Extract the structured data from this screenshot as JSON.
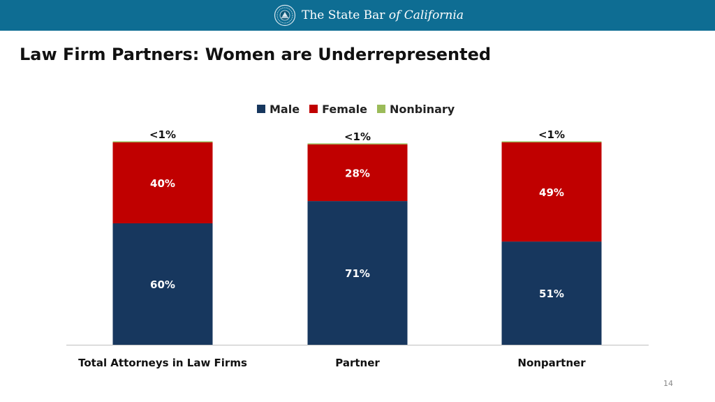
{
  "header": {
    "brand_main": "The State Bar ",
    "brand_italic": "of California",
    "logo_icon": "state-bar-seal-icon",
    "bg_color": "#0e6d93"
  },
  "page": {
    "title": "Law Firm Partners:  Women are Underrepresented",
    "page_number": "14"
  },
  "chart_data": {
    "type": "bar",
    "stacked": true,
    "categories": [
      "Total Attorneys in Law Firms",
      "Partner",
      "Nonpartner"
    ],
    "series": [
      {
        "name": "Male",
        "color": "#17375e",
        "values": [
          60,
          71,
          51
        ],
        "labels": [
          "60%",
          "71%",
          "51%"
        ]
      },
      {
        "name": "Female",
        "color": "#c00000",
        "values": [
          40,
          28,
          49
        ],
        "labels": [
          "40%",
          "28%",
          "49%"
        ]
      },
      {
        "name": "Nonbinary",
        "color": "#9bbb59",
        "values": [
          0.3,
          0.3,
          0.3
        ],
        "labels": [
          "<1%",
          "<1%",
          "<1%"
        ]
      }
    ],
    "ylim": [
      0,
      100
    ],
    "legend": "top-center",
    "grid": false,
    "title": "",
    "xlabel": "",
    "ylabel": ""
  }
}
